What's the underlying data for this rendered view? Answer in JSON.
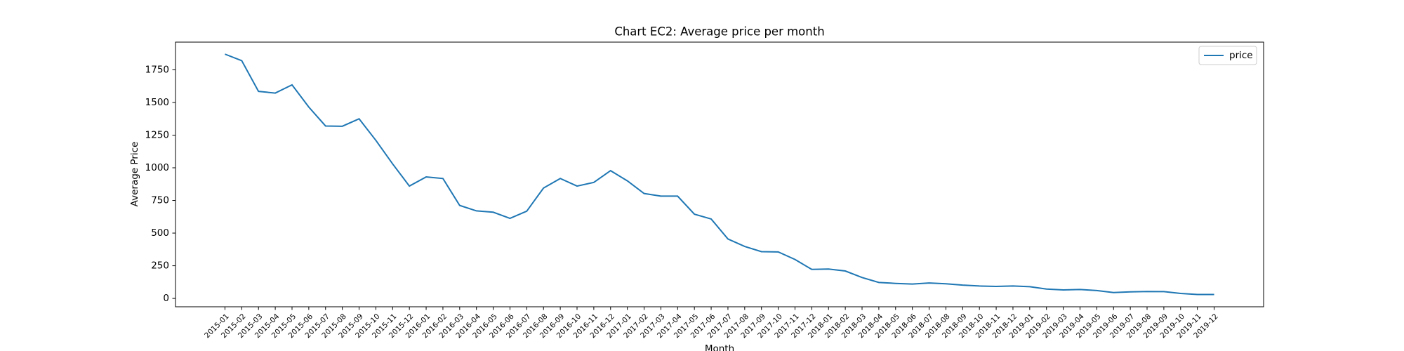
{
  "chart_data": {
    "type": "line",
    "title": "Chart EC2: Average price per month",
    "x_label": "Month",
    "y_label": "Average Price",
    "categories": [
      "2015-01",
      "2015-02",
      "2015-03",
      "2015-04",
      "2015-05",
      "2015-06",
      "2015-07",
      "2015-08",
      "2015-09",
      "2015-10",
      "2015-11",
      "2015-12",
      "2016-01",
      "2016-02",
      "2016-03",
      "2016-04",
      "2016-05",
      "2016-06",
      "2016-07",
      "2016-08",
      "2016-09",
      "2016-10",
      "2016-11",
      "2016-12",
      "2017-01",
      "2017-02",
      "2017-03",
      "2017-04",
      "2017-05",
      "2017-06",
      "2017-07",
      "2017-08",
      "2017-09",
      "2017-10",
      "2017-11",
      "2017-12",
      "2018-01",
      "2018-02",
      "2018-03",
      "2018-04",
      "2018-05",
      "2018-06",
      "2018-07",
      "2018-08",
      "2018-09",
      "2018-10",
      "2018-11",
      "2018-12",
      "2019-01",
      "2019-02",
      "2019-03",
      "2019-04",
      "2019-05",
      "2019-06",
      "2019-07",
      "2019-08",
      "2019-09",
      "2019-10",
      "2019-11",
      "2019-12"
    ],
    "series": [
      {
        "name": "price",
        "color": "#1f77b4",
        "values": [
          1870,
          1820,
          1585,
          1572,
          1635,
          1465,
          1320,
          1318,
          1375,
          1210,
          1030,
          860,
          930,
          918,
          712,
          670,
          660,
          613,
          668,
          845,
          918,
          860,
          888,
          978,
          900,
          803,
          783,
          783,
          645,
          608,
          455,
          398,
          358,
          356,
          298,
          222,
          225,
          210,
          160,
          122,
          115,
          110,
          118,
          112,
          102,
          95,
          92,
          95,
          90,
          72,
          65,
          68,
          60,
          45,
          50,
          53,
          52,
          38,
          30,
          30
        ]
      }
    ],
    "ylim": [
      -64,
      1962
    ],
    "yticks": [
      0,
      250,
      500,
      750,
      1000,
      1250,
      1500,
      1750
    ],
    "legend": "upper right",
    "grid": false
  }
}
